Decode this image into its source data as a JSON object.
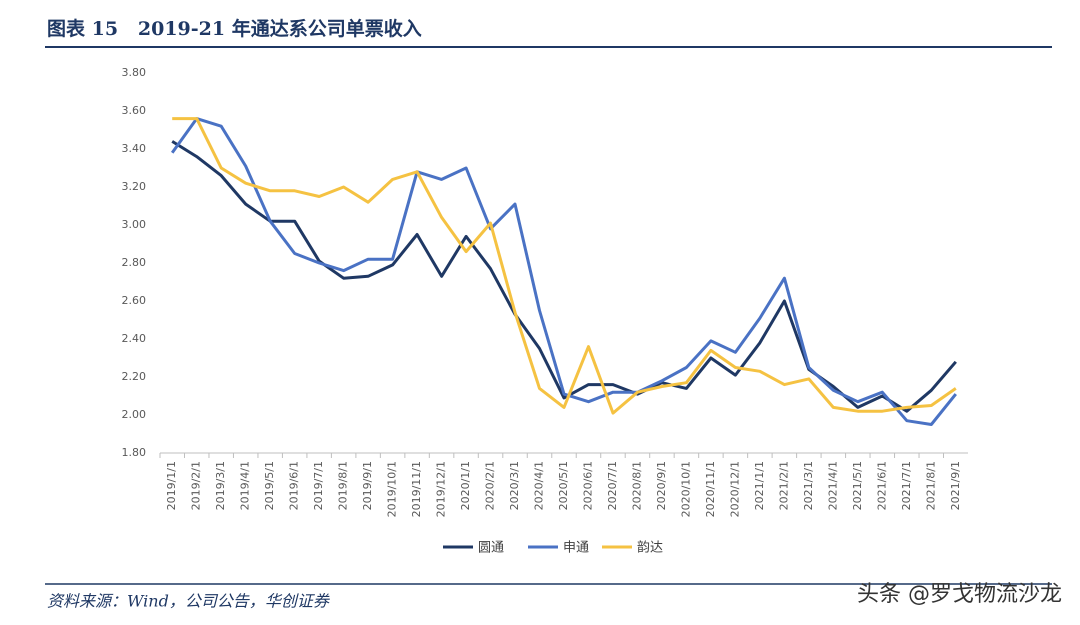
{
  "chart_data": {
    "type": "line",
    "title": "图表 15   2019-21 年通达系公司单票收入",
    "source": "资料来源：Wind，公司公告，华创证券",
    "watermark": "头条 @罗戈物流沙龙",
    "categories": [
      "2019/1/1",
      "2019/2/1",
      "2019/3/1",
      "2019/4/1",
      "2019/5/1",
      "2019/6/1",
      "2019/7/1",
      "2019/8/1",
      "2019/9/1",
      "2019/10/1",
      "2019/11/1",
      "2019/12/1",
      "2020/1/1",
      "2020/2/1",
      "2020/3/1",
      "2020/4/1",
      "2020/5/1",
      "2020/6/1",
      "2020/7/1",
      "2020/8/1",
      "2020/9/1",
      "2020/10/1",
      "2020/11/1",
      "2020/12/1",
      "2021/1/1",
      "2021/2/1",
      "2021/3/1",
      "2021/4/1",
      "2021/5/1",
      "2021/6/1",
      "2021/7/1",
      "2021/8/1",
      "2021/9/1"
    ],
    "series": [
      {
        "name": "圆通",
        "color": "#1f3864",
        "values": [
          3.44,
          3.36,
          3.26,
          3.11,
          3.02,
          3.02,
          2.81,
          2.72,
          2.73,
          2.79,
          2.95,
          2.73,
          2.94,
          2.77,
          2.53,
          2.35,
          2.09,
          2.16,
          2.16,
          2.11,
          2.17,
          2.14,
          2.3,
          2.21,
          2.38,
          2.6,
          2.24,
          2.15,
          2.04,
          2.1,
          2.02,
          2.13,
          2.28
        ]
      },
      {
        "name": "申通",
        "color": "#4a72c4",
        "values": [
          3.38,
          3.56,
          3.52,
          3.31,
          3.02,
          2.85,
          2.8,
          2.76,
          2.82,
          2.82,
          3.28,
          3.24,
          3.3,
          2.98,
          3.11,
          2.55,
          2.11,
          2.07,
          2.12,
          2.12,
          2.18,
          2.25,
          2.39,
          2.33,
          2.51,
          2.72,
          2.25,
          2.13,
          2.07,
          2.12,
          1.97,
          1.95,
          2.11
        ]
      },
      {
        "name": "韵达",
        "color": "#f5c242",
        "values": [
          3.56,
          3.56,
          3.3,
          3.22,
          3.18,
          3.18,
          3.15,
          3.2,
          3.12,
          3.24,
          3.28,
          3.04,
          2.86,
          3.01,
          2.54,
          2.14,
          2.04,
          2.36,
          2.01,
          2.12,
          2.15,
          2.17,
          2.34,
          2.25,
          2.23,
          2.16,
          2.19,
          2.04,
          2.02,
          2.02,
          2.04,
          2.05,
          2.14
        ]
      }
    ],
    "ylim": [
      1.8,
      3.8
    ],
    "yticks": [
      {
        "value": 1.8,
        "label": "1.80"
      },
      {
        "value": 2.0,
        "label": "2.00"
      },
      {
        "value": 2.2,
        "label": "2.20"
      },
      {
        "value": 2.4,
        "label": "2.40"
      },
      {
        "value": 2.6,
        "label": "2.60"
      },
      {
        "value": 2.8,
        "label": "2.80"
      },
      {
        "value": 3.0,
        "label": "3.00"
      },
      {
        "value": 3.2,
        "label": "3.20"
      },
      {
        "value": 3.4,
        "label": "3.40"
      },
      {
        "value": 3.6,
        "label": "3.60"
      },
      {
        "value": 3.8,
        "label": "3.80"
      }
    ],
    "grid": false
  }
}
